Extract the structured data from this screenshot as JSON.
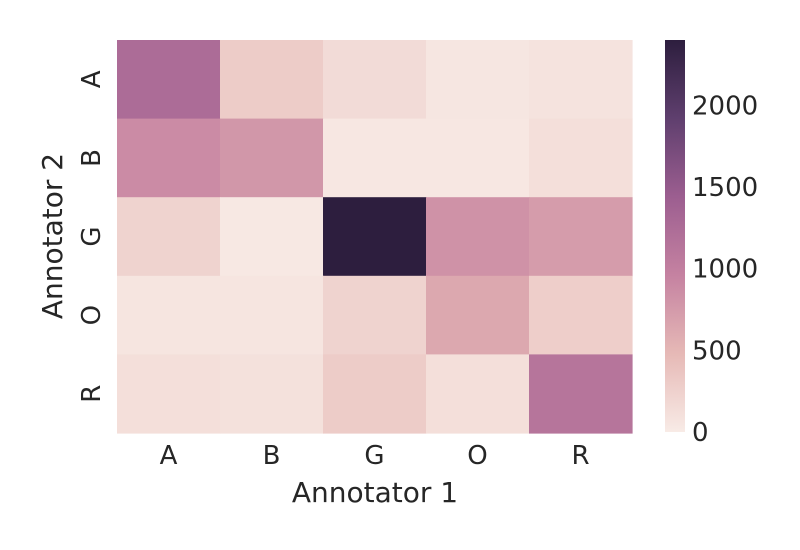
{
  "chart_data": {
    "type": "heatmap",
    "title": "",
    "xlabel": "Annotator 1",
    "ylabel": "Annotator 2",
    "x_categories": [
      "A",
      "B",
      "G",
      "O",
      "R"
    ],
    "y_categories": [
      "A",
      "B",
      "G",
      "O",
      "R"
    ],
    "values": [
      [
        1250,
        300,
        150,
        50,
        80
      ],
      [
        880,
        780,
        40,
        40,
        120
      ],
      [
        230,
        30,
        2400,
        820,
        730
      ],
      [
        60,
        60,
        230,
        630,
        280
      ],
      [
        120,
        100,
        300,
        120,
        1140
      ]
    ],
    "colorbar": {
      "range": [
        0,
        2400
      ],
      "ticks": [
        0,
        500,
        1000,
        1500,
        2000
      ],
      "colors": [
        "#f8ebe6",
        "#e6b9b6",
        "#c582a1",
        "#9c5e90",
        "#5f3f6e",
        "#2d1e3e"
      ]
    },
    "grid": false,
    "legend": "colorbar-right"
  }
}
